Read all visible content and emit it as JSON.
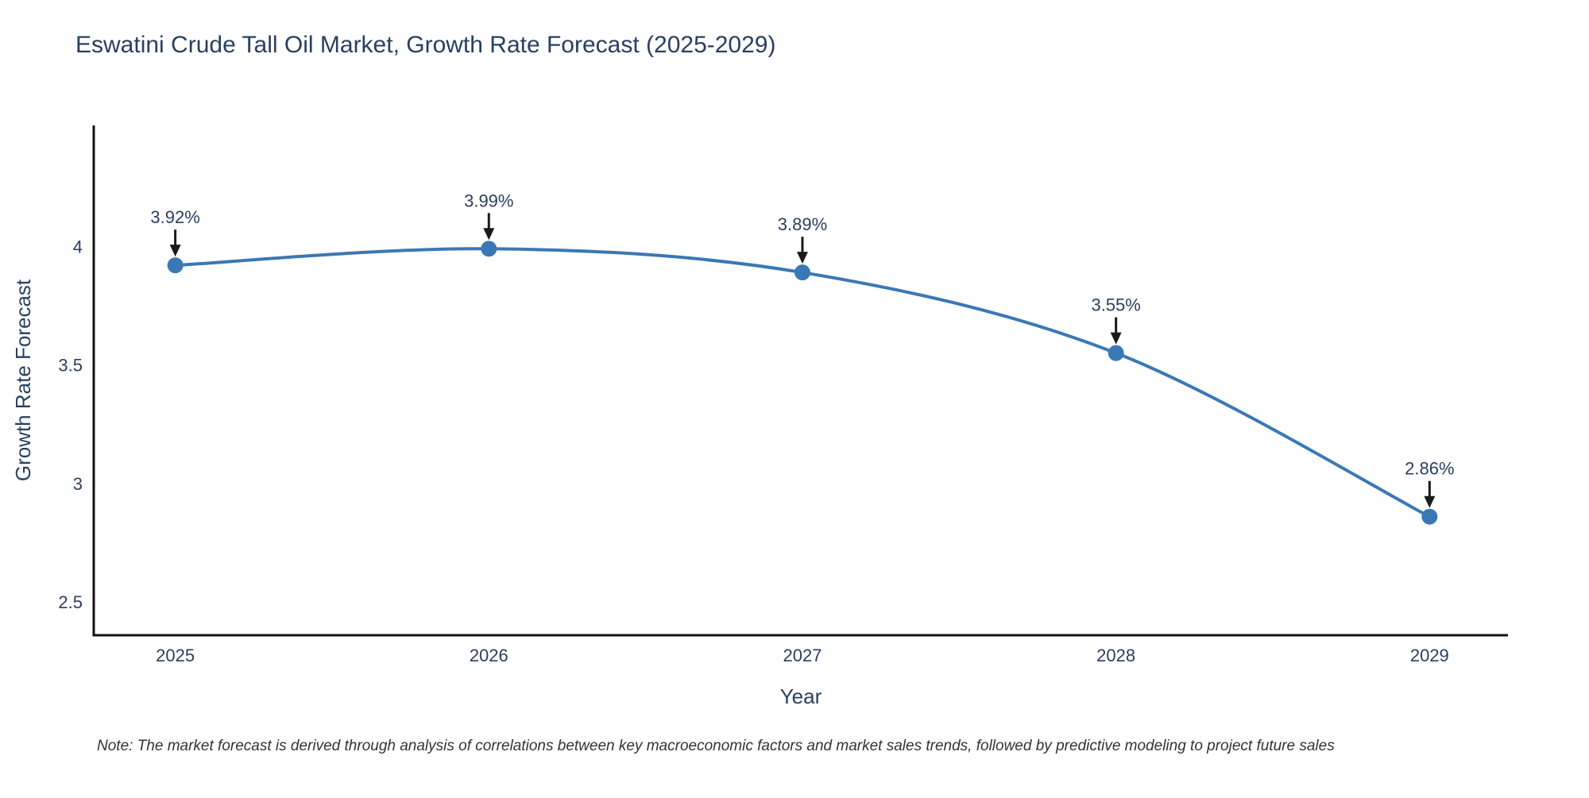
{
  "page": {
    "background": "#ffffff"
  },
  "chart_data": {
    "type": "line",
    "title": "Eswatini Crude Tall Oil Market, Growth Rate Forecast (2025-2029)",
    "xlabel": "Year",
    "ylabel": "Growth Rate Forecast",
    "x": [
      2025,
      2026,
      2027,
      2028,
      2029
    ],
    "values": [
      3.92,
      3.99,
      3.89,
      3.55,
      2.86
    ],
    "point_labels": [
      "3.92%",
      "3.99%",
      "3.89%",
      "3.55%",
      "2.86%"
    ],
    "x_ticks": [
      "2025",
      "2026",
      "2027",
      "2028",
      "2029"
    ],
    "y_ticks": [
      "2.5",
      "3",
      "3.5",
      "4"
    ],
    "x_range": [
      2024.74,
      2029.25
    ],
    "y_range": [
      2.36,
      4.51
    ],
    "grid": false,
    "legend_position": "none",
    "line_shape": "spline",
    "colors": {
      "line": "#3a78b5",
      "marker": "#3a78b5",
      "title": "#2a3f5f",
      "tick": "#2a3f5f",
      "axis_title": "#2a3f5f",
      "axis_line": "#111111",
      "annotation_arrow": "#1a1a1a",
      "annotation_text": "#2a3f5f",
      "note_text": "#333333"
    }
  },
  "note": {
    "text": "Note: The market forecast is derived through analysis of correlations between key macroeconomic factors and market sales trends, followed by predictive modeling to project future sales"
  }
}
